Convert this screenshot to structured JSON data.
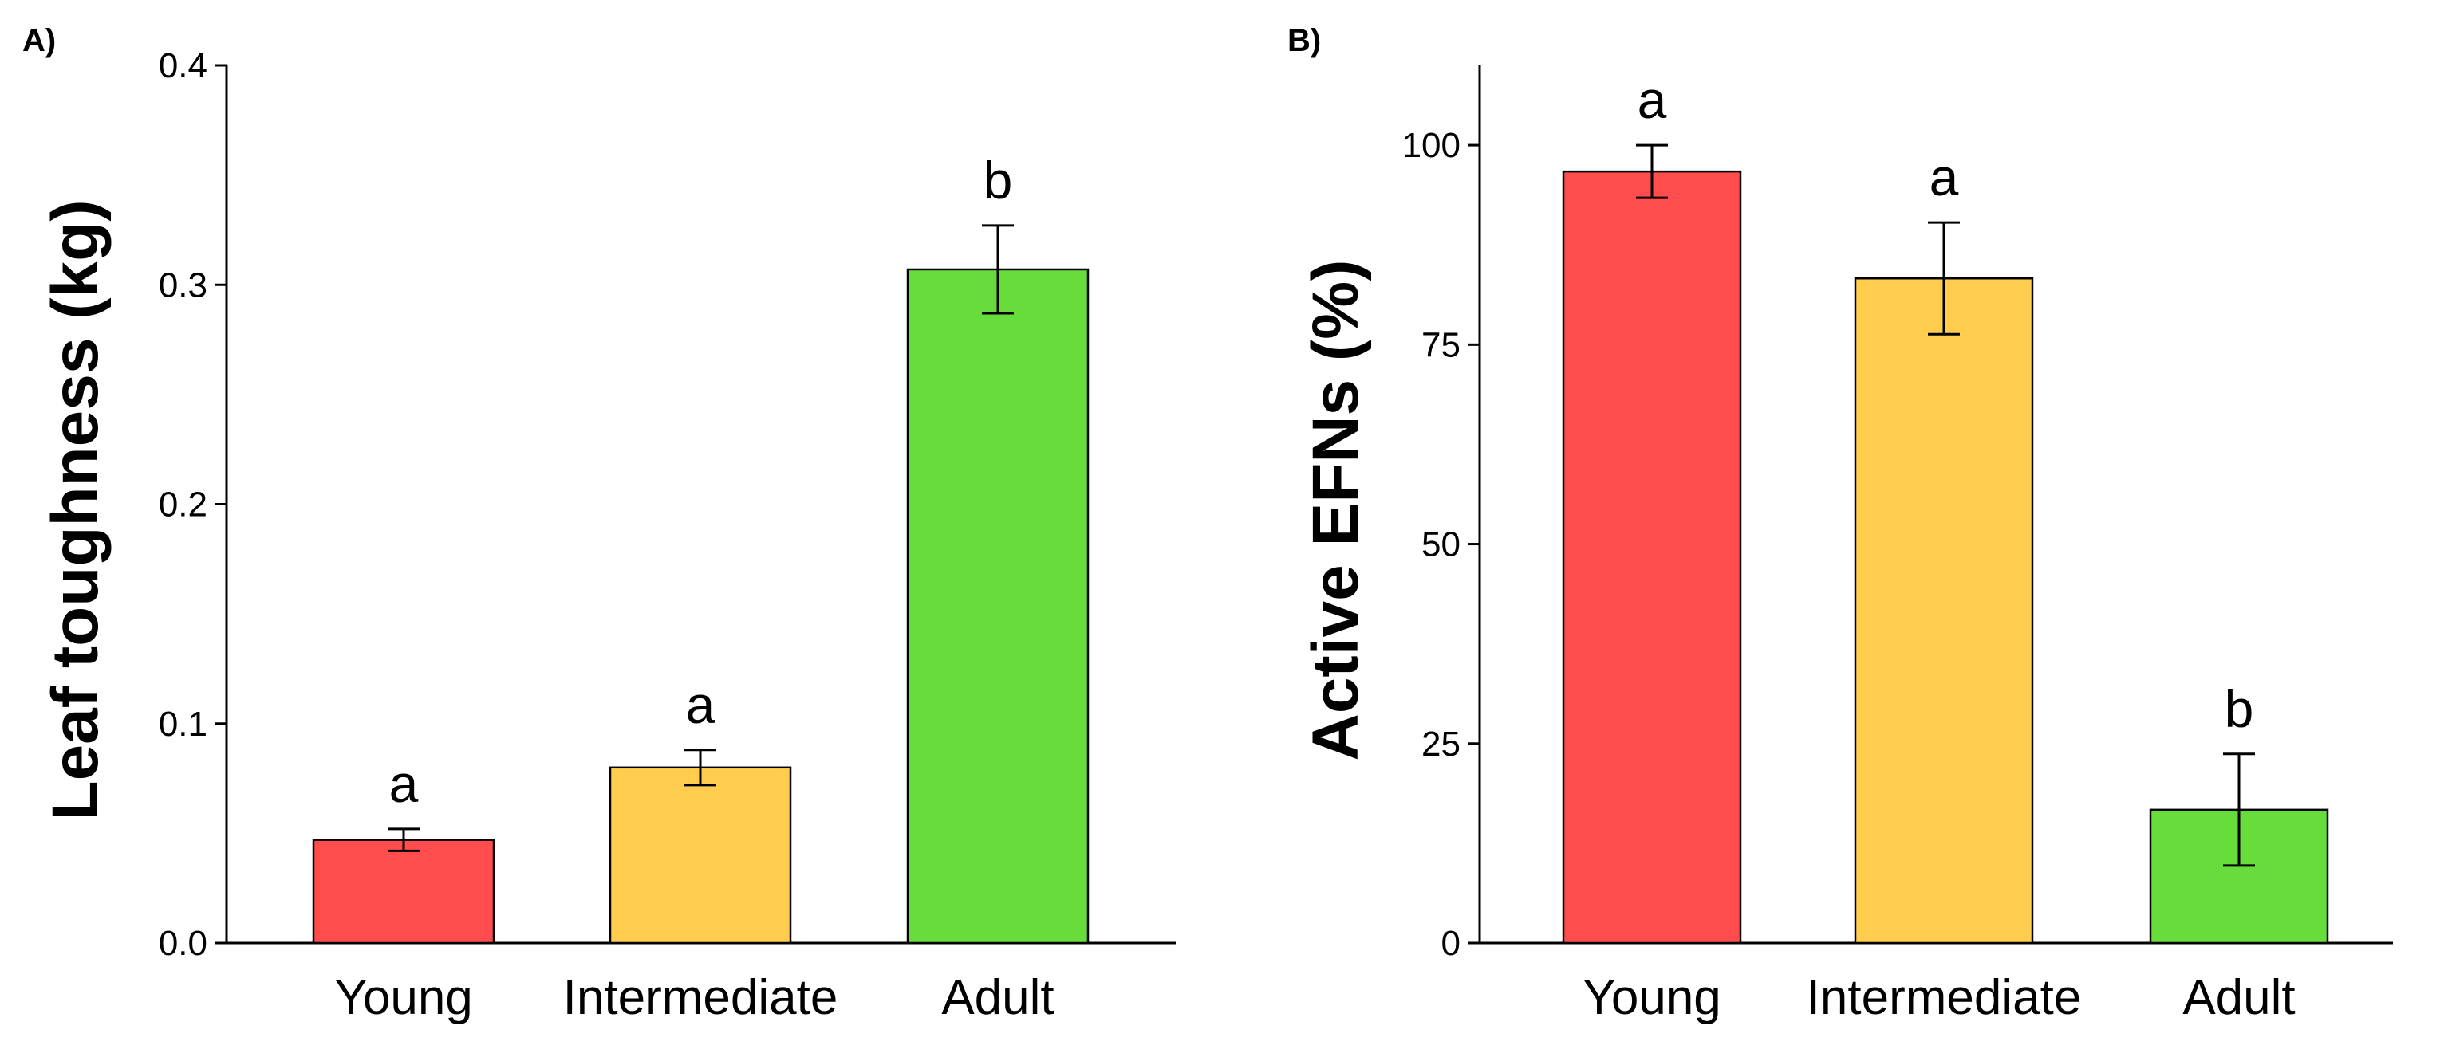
{
  "chart_data": [
    {
      "panel": "A)",
      "type": "bar",
      "title": "",
      "xlabel": "",
      "ylabel": "Leaf toughness (kg)",
      "categories": [
        "Young",
        "Intermediate",
        "Adult"
      ],
      "values": [
        0.047,
        0.08,
        0.307
      ],
      "errors": [
        0.005,
        0.008,
        0.02
      ],
      "letters": [
        "a",
        "a",
        "b"
      ],
      "colors": [
        "#FF4C4C",
        "#FFCC4D",
        "#66DD3A"
      ],
      "ylim": [
        0,
        0.4
      ],
      "yticks": [
        0.0,
        0.1,
        0.2,
        0.3,
        0.4
      ],
      "ytick_labels": [
        "0.0",
        "0.1",
        "0.2",
        "0.3",
        "0.4"
      ],
      "grid": false
    },
    {
      "panel": "B)",
      "type": "bar",
      "title": "",
      "xlabel": "",
      "ylabel": "Active EFNs (%)",
      "categories": [
        "Young",
        "Intermediate",
        "Adult"
      ],
      "values": [
        96.7,
        83.3,
        16.7
      ],
      "errors": [
        3.3,
        7.0,
        7.0
      ],
      "letters": [
        "a",
        "a",
        "b"
      ],
      "colors": [
        "#FF4C4C",
        "#FFCC4D",
        "#66DD3A"
      ],
      "ylim": [
        0,
        110
      ],
      "yticks": [
        0,
        25,
        50,
        75,
        100
      ],
      "ytick_labels": [
        "0",
        "25",
        "50",
        "75",
        "100"
      ],
      "grid": false
    }
  ]
}
